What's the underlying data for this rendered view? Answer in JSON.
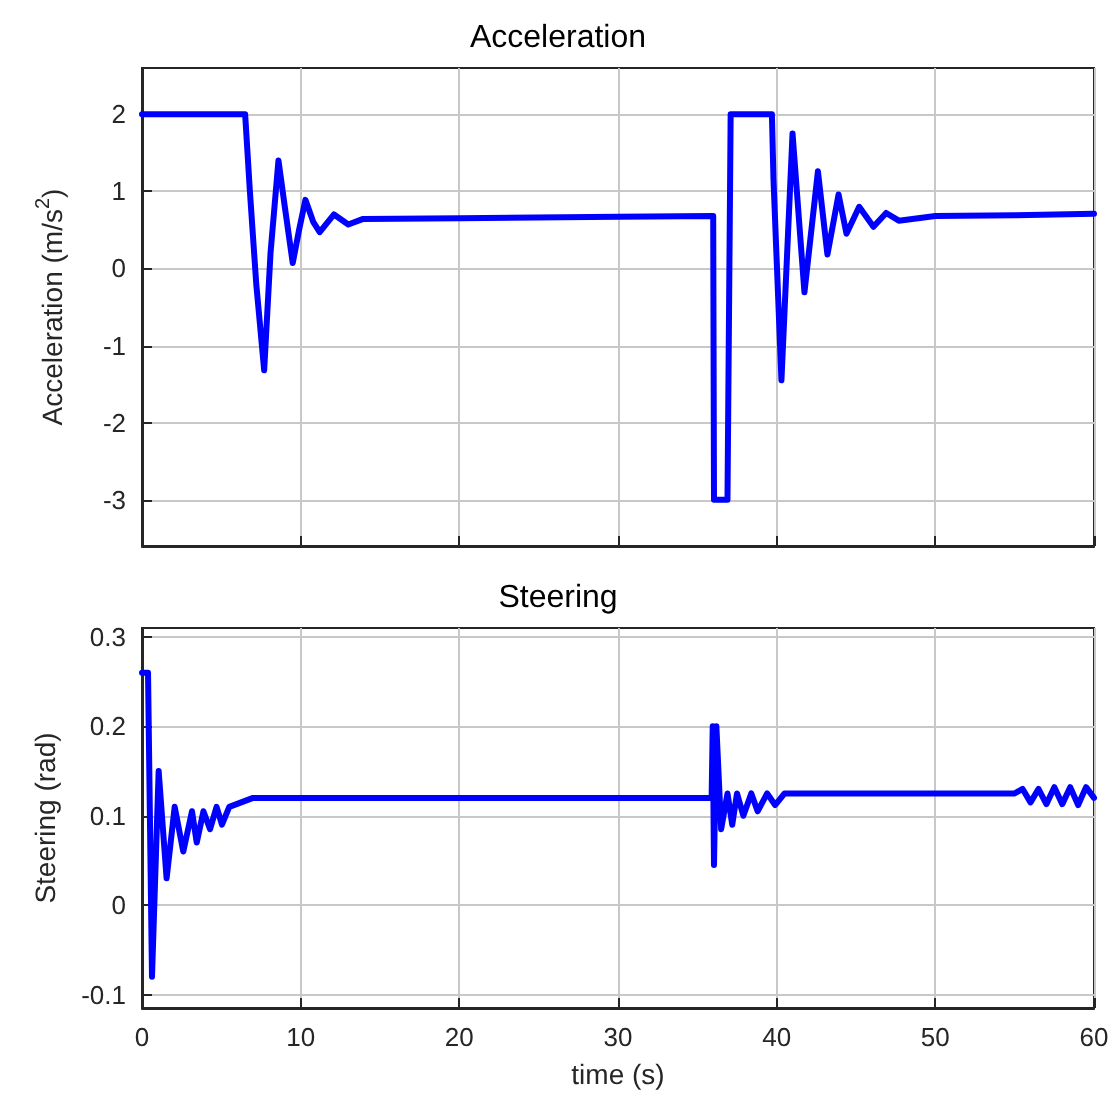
{
  "chart_data": [
    {
      "type": "line",
      "title": "Acceleration",
      "ylabel": "Acceleration (m/s$^{2}$)",
      "xlim": [
        0,
        60
      ],
      "xticks": [
        0,
        10,
        20,
        30,
        40,
        50,
        60
      ],
      "ylim": [
        -3.6,
        2.6
      ],
      "yticks": [
        -3,
        -2,
        -1,
        0,
        1,
        2
      ],
      "tick_labels": "y",
      "grid": true,
      "marker": "none",
      "line_style": "solid",
      "series": [
        {
          "color": "#0000ff",
          "x": [
            0,
            6.5,
            6.8,
            7.2,
            7.7,
            8.1,
            8.6,
            9.0,
            9.5,
            9.9,
            10.3,
            10.8,
            11.2,
            12.1,
            13.0,
            13.9,
            20,
            30,
            36.0,
            36.05,
            36.9,
            37.1,
            39.7,
            39.8,
            40.3,
            41.0,
            41.75,
            42.6,
            43.2,
            43.9,
            44.4,
            45.2,
            46.1,
            46.9,
            47.7,
            50,
            55,
            60
          ],
          "values": [
            2,
            2,
            1.0,
            -0.2,
            -1.32,
            0.2,
            1.4,
            0.8,
            0.07,
            0.5,
            0.89,
            0.6,
            0.47,
            0.7,
            0.57,
            0.64,
            0.65,
            0.67,
            0.68,
            -3.0,
            -3.0,
            2.0,
            2.0,
            1.15,
            -1.45,
            1.75,
            -0.31,
            1.26,
            0.18,
            0.96,
            0.45,
            0.8,
            0.54,
            0.72,
            0.62,
            0.68,
            0.69,
            0.71
          ]
        }
      ]
    },
    {
      "type": "line",
      "title": "Steering",
      "xlabel": "time (s)",
      "ylabel": "Steering (rad)",
      "xlim": [
        0,
        60
      ],
      "xticks": [
        0,
        10,
        20,
        30,
        40,
        50,
        60
      ],
      "ylim": [
        -0.115,
        0.31
      ],
      "yticks": [
        -0.1,
        0,
        0.1,
        0.2,
        0.3
      ],
      "grid": true,
      "marker": "none",
      "line_style": "solid",
      "series": [
        {
          "color": "#0000ff",
          "x": [
            0,
            0.38,
            0.63,
            1.05,
            1.55,
            2.06,
            2.6,
            3.15,
            3.45,
            3.87,
            4.29,
            4.7,
            5.04,
            5.5,
            7.0,
            20,
            35.9,
            35.97,
            36.05,
            36.2,
            36.5,
            36.9,
            37.2,
            37.5,
            37.9,
            38.4,
            38.8,
            39.4,
            39.9,
            40.5,
            50,
            55,
            55.5,
            56,
            56.5,
            57,
            57.5,
            58,
            58.5,
            59,
            59.5,
            60
          ],
          "values": [
            0.26,
            0.26,
            -0.08,
            0.15,
            0.03,
            0.11,
            0.06,
            0.105,
            0.07,
            0.105,
            0.085,
            0.11,
            0.09,
            0.11,
            0.12,
            0.12,
            0.12,
            0.2,
            0.045,
            0.2,
            0.085,
            0.125,
            0.09,
            0.125,
            0.1,
            0.125,
            0.105,
            0.125,
            0.112,
            0.125,
            0.125,
            0.125,
            0.13,
            0.115,
            0.13,
            0.113,
            0.132,
            0.113,
            0.132,
            0.112,
            0.132,
            0.12
          ]
        }
      ]
    }
  ]
}
